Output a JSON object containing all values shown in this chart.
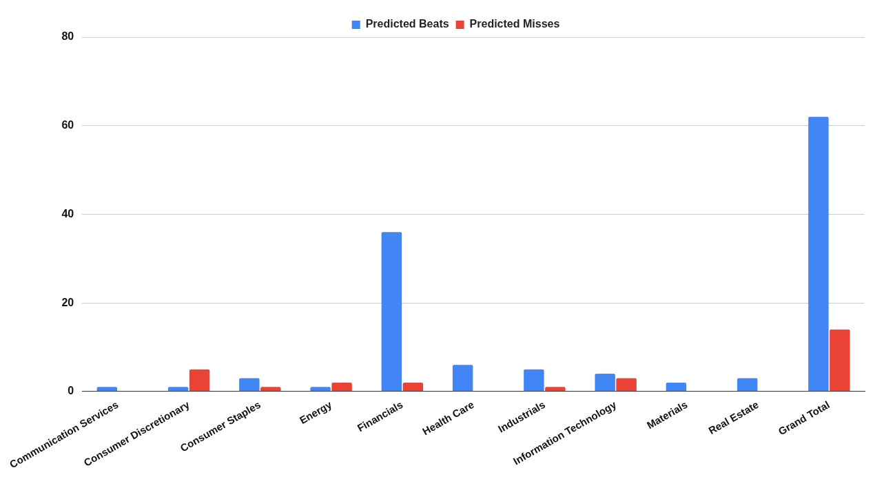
{
  "chart_data": {
    "type": "bar",
    "categories": [
      "Communication Services",
      "Consumer Discretionary",
      "Consumer Staples",
      "Energy",
      "Financials",
      "Health Care",
      "Industrials",
      "Information Technology",
      "Materials",
      "Real Estate",
      "Grand Total"
    ],
    "series": [
      {
        "name": "Predicted Beats",
        "color": "#4285f4",
        "values": [
          1,
          1,
          3,
          1,
          36,
          6,
          5,
          4,
          2,
          3,
          62
        ]
      },
      {
        "name": "Predicted Misses",
        "color": "#ea4335",
        "values": [
          0,
          5,
          1,
          2,
          2,
          0,
          1,
          3,
          0,
          0,
          14
        ]
      }
    ],
    "ylim": [
      0,
      80
    ],
    "yticks": [
      0,
      20,
      40,
      60,
      80
    ],
    "grid": "y",
    "legend": "top"
  }
}
